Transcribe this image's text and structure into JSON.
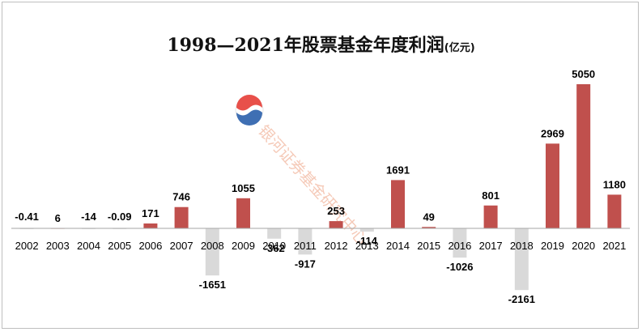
{
  "chart_data": {
    "type": "bar",
    "title": "1998—2021年股票基金年度利润",
    "subtitle": "(亿元)",
    "categories": [
      "2002",
      "2003",
      "2004",
      "2005",
      "2006",
      "2007",
      "2008",
      "2009",
      "2010",
      "2011",
      "2012",
      "2013",
      "2014",
      "2015",
      "2016",
      "2017",
      "2018",
      "2019",
      "2020",
      "2021"
    ],
    "values": [
      -0.41,
      6,
      -14,
      -0.09,
      171,
      746,
      -1651,
      1055,
      -362,
      -917,
      253,
      -114,
      1691,
      49,
      -1026,
      801,
      -2161,
      2969,
      5050,
      1180
    ],
    "value_labels": [
      "-0.41",
      "6",
      "-14",
      "-0.09",
      "171",
      "746",
      "-1651",
      "1055",
      "-362",
      "-917",
      "253",
      "-114",
      "1691",
      "49",
      "-1026",
      "801",
      "-2161",
      "2969",
      "5050",
      "1180"
    ],
    "ylim": [
      -2350,
      5450
    ],
    "grid": false,
    "legend": "none",
    "colors": {
      "positive": "#c0504d",
      "negative": "#d9d9d9",
      "axis": "#a6a6a6"
    }
  },
  "watermark": {
    "text": "银河证券基金研究中心",
    "colors": {
      "red": "#e8504a",
      "blue": "#3f6fb3"
    }
  }
}
